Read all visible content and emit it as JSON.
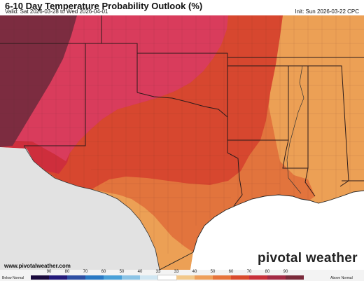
{
  "header": {
    "title": "6-10 Day Temperature Probability Outlook (%)",
    "valid": "Valid: Sat 2026-03-28 to Wed 2026-04-01",
    "init": "Init: Sun 2026-03-22 CPC"
  },
  "footer": {
    "website": "www.pivotalweather.com",
    "brand": "pivotal weather"
  },
  "legend": {
    "below_label": "Below Normal",
    "above_label": "Above Normal",
    "ticks": [
      "90",
      "80",
      "70",
      "60",
      "50",
      "40",
      "33",
      "33",
      "40",
      "50",
      "60",
      "70",
      "80",
      "90"
    ],
    "colors": [
      "#1a0a3d",
      "#241a7a",
      "#2e4fa3",
      "#2a79c4",
      "#4aa0d8",
      "#8cc4e6",
      "#d0e6f2",
      "#ffffff",
      "#f2c88a",
      "#ee9f5a",
      "#e6733a",
      "#d94a2c",
      "#c8303a",
      "#a32a44",
      "#7a2a3a"
    ]
  },
  "map_colors": {
    "normal_fill": "#e2e2e2",
    "ocean": "#ffffff",
    "above_40": "#eca055",
    "above_50": "#e2743d",
    "above_60": "#d7472f",
    "above_70": "#ce2e3c",
    "above_80": "#d93c5c",
    "above_90": "#7c2c40"
  }
}
